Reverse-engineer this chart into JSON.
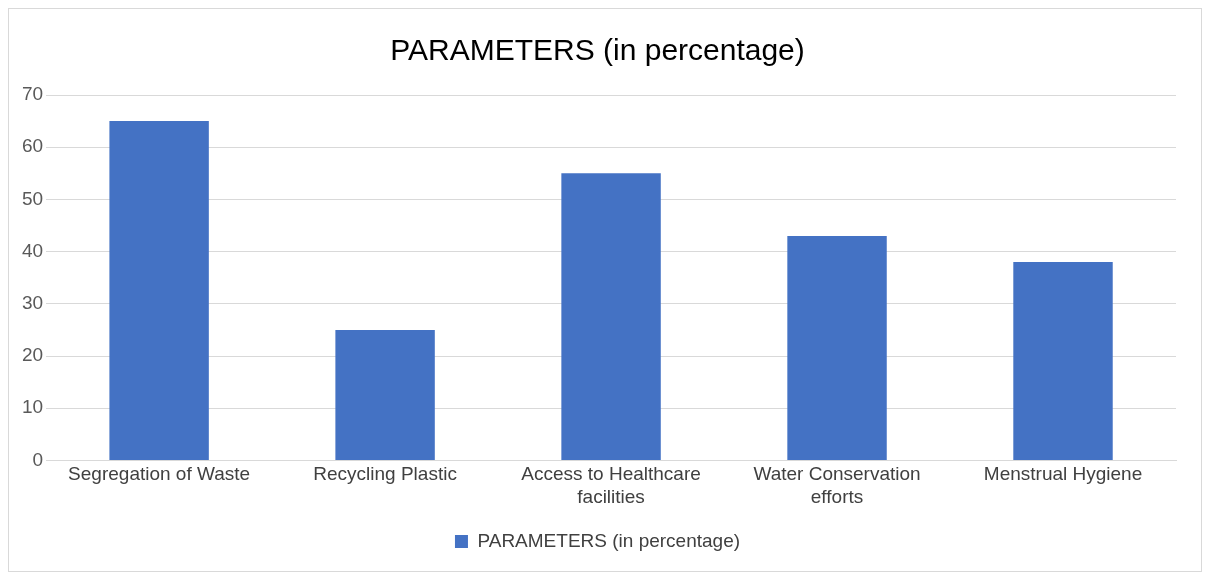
{
  "chart_data": {
    "type": "bar",
    "title": "PARAMETERS (in percentage)",
    "categories": [
      "Segregation of Waste",
      "Recycling Plastic",
      "Access to Healthcare facilities",
      "Water Conservation efforts",
      "Menstrual Hygiene"
    ],
    "series": [
      {
        "name": "PARAMETERS (in percentage)",
        "color": "#4472c4",
        "values": [
          65,
          25,
          55,
          43,
          38
        ]
      }
    ],
    "ylim": [
      0,
      70
    ],
    "yticks": [
      0,
      10,
      20,
      30,
      40,
      50,
      60,
      70
    ],
    "grid": "y",
    "legend": "bottom"
  }
}
